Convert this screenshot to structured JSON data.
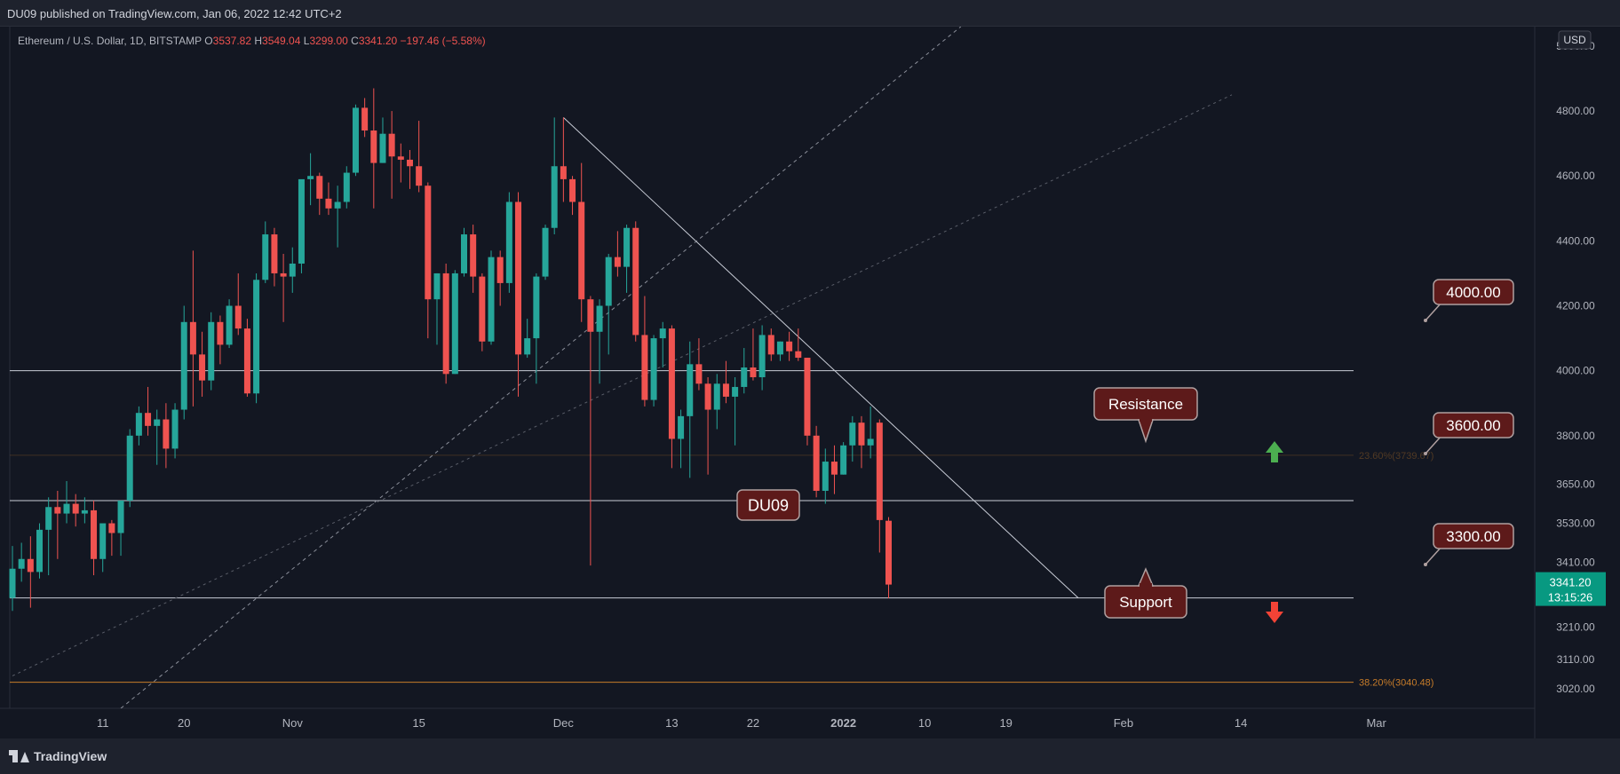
{
  "header": {
    "published": "DU09 published on TradingView.com, Jan 06, 2022 12:42 UTC+2"
  },
  "legend": {
    "symbol": "Ethereum / U.S. Dollar, 1D, BITSTAMP",
    "o_label": "O",
    "o_value": "3537.82",
    "h_label": "H",
    "h_value": "3549.04",
    "l_label": "L",
    "l_value": "3299.00",
    "c_label": "C",
    "c_value": "3341.20",
    "change": "−197.46 (−5.58%)"
  },
  "currency_label": "USD",
  "price_badge": {
    "price": "3341.20",
    "countdown": "13:15:26"
  },
  "annotations": {
    "watermark": "DU09",
    "resistance": "Resistance",
    "support": "Support",
    "level_4000": "4000.00",
    "level_3600": "3600.00",
    "level_3300": "3300.00",
    "fib_236": "23.60%(3739.67)",
    "fib_382": "38.20%(3040.48)"
  },
  "footer": {
    "brand": "TradingView"
  },
  "colors": {
    "background": "#131722",
    "up": "#26a69a",
    "down": "#ef5350",
    "text": "#b2b5be",
    "label_bg": "#5d1a1a",
    "fib": "#c77c29",
    "badge": "#089981"
  },
  "chart_data": {
    "type": "candlestick",
    "ylim": [
      2960,
      5060
    ],
    "y_ticks": [
      {
        "label": "5000.00",
        "value": 5000
      },
      {
        "label": "4800.00",
        "value": 4800
      },
      {
        "label": "4600.00",
        "value": 4600
      },
      {
        "label": "4400.00",
        "value": 4400
      },
      {
        "label": "4200.00",
        "value": 4200
      },
      {
        "label": "4000.00",
        "value": 4000
      },
      {
        "label": "3800.00",
        "value": 3800
      },
      {
        "label": "3650.00",
        "value": 3650
      },
      {
        "label": "3530.00",
        "value": 3530
      },
      {
        "label": "3410.00",
        "value": 3410
      },
      {
        "label": "3210.00",
        "value": 3210
      },
      {
        "label": "3110.00",
        "value": 3110
      },
      {
        "label": "3020.00",
        "value": 3020
      }
    ],
    "x_ticks": [
      {
        "label": "11",
        "date": "2021-10-11"
      },
      {
        "label": "20",
        "date": "2021-10-20"
      },
      {
        "label": "Nov",
        "date": "2021-11-01"
      },
      {
        "label": "15",
        "date": "2021-11-15"
      },
      {
        "label": "Dec",
        "date": "2021-12-01"
      },
      {
        "label": "13",
        "date": "2021-12-13"
      },
      {
        "label": "22",
        "date": "2021-12-22"
      },
      {
        "label": "2022",
        "date": "2022-01-01"
      },
      {
        "label": "10",
        "date": "2022-01-10"
      },
      {
        "label": "19",
        "date": "2022-01-19"
      },
      {
        "label": "Feb",
        "date": "2022-02-01"
      },
      {
        "label": "14",
        "date": "2022-02-14"
      },
      {
        "label": "Mar",
        "date": "2022-03-01"
      }
    ],
    "candles": [
      {
        "date": "2021-10-01",
        "o": 3300,
        "h": 3460,
        "l": 3260,
        "c": 3390
      },
      {
        "date": "2021-10-02",
        "o": 3390,
        "h": 3470,
        "l": 3350,
        "c": 3420
      },
      {
        "date": "2021-10-03",
        "o": 3420,
        "h": 3490,
        "l": 3270,
        "c": 3380
      },
      {
        "date": "2021-10-04",
        "o": 3380,
        "h": 3530,
        "l": 3360,
        "c": 3510
      },
      {
        "date": "2021-10-05",
        "o": 3510,
        "h": 3610,
        "l": 3370,
        "c": 3580
      },
      {
        "date": "2021-10-06",
        "o": 3580,
        "h": 3630,
        "l": 3420,
        "c": 3560
      },
      {
        "date": "2021-10-07",
        "o": 3560,
        "h": 3660,
        "l": 3530,
        "c": 3590
      },
      {
        "date": "2021-10-08",
        "o": 3590,
        "h": 3620,
        "l": 3520,
        "c": 3560
      },
      {
        "date": "2021-10-09",
        "o": 3560,
        "h": 3610,
        "l": 3530,
        "c": 3570
      },
      {
        "date": "2021-10-10",
        "o": 3570,
        "h": 3600,
        "l": 3370,
        "c": 3420
      },
      {
        "date": "2021-10-11",
        "o": 3420,
        "h": 3520,
        "l": 3380,
        "c": 3530
      },
      {
        "date": "2021-10-12",
        "o": 3530,
        "h": 3540,
        "l": 3430,
        "c": 3500
      },
      {
        "date": "2021-10-13",
        "o": 3500,
        "h": 3600,
        "l": 3430,
        "c": 3600
      },
      {
        "date": "2021-10-14",
        "o": 3600,
        "h": 3820,
        "l": 3580,
        "c": 3800
      },
      {
        "date": "2021-10-15",
        "o": 3800,
        "h": 3890,
        "l": 3770,
        "c": 3870
      },
      {
        "date": "2021-10-16",
        "o": 3870,
        "h": 3950,
        "l": 3800,
        "c": 3830
      },
      {
        "date": "2021-10-17",
        "o": 3830,
        "h": 3880,
        "l": 3710,
        "c": 3850
      },
      {
        "date": "2021-10-18",
        "o": 3850,
        "h": 3900,
        "l": 3700,
        "c": 3760
      },
      {
        "date": "2021-10-19",
        "o": 3760,
        "h": 3900,
        "l": 3730,
        "c": 3880
      },
      {
        "date": "2021-10-20",
        "o": 3880,
        "h": 4200,
        "l": 3850,
        "c": 4150
      },
      {
        "date": "2021-10-21",
        "o": 4150,
        "h": 4370,
        "l": 3890,
        "c": 4050
      },
      {
        "date": "2021-10-22",
        "o": 4050,
        "h": 4120,
        "l": 3920,
        "c": 3970
      },
      {
        "date": "2021-10-23",
        "o": 3970,
        "h": 4180,
        "l": 3940,
        "c": 4150
      },
      {
        "date": "2021-10-24",
        "o": 4150,
        "h": 4170,
        "l": 4020,
        "c": 4080
      },
      {
        "date": "2021-10-25",
        "o": 4080,
        "h": 4220,
        "l": 4070,
        "c": 4200
      },
      {
        "date": "2021-10-26",
        "o": 4200,
        "h": 4300,
        "l": 4110,
        "c": 4130
      },
      {
        "date": "2021-10-27",
        "o": 4130,
        "h": 4160,
        "l": 3920,
        "c": 3930
      },
      {
        "date": "2021-10-28",
        "o": 3930,
        "h": 4300,
        "l": 3900,
        "c": 4280
      },
      {
        "date": "2021-10-29",
        "o": 4280,
        "h": 4460,
        "l": 4270,
        "c": 4420
      },
      {
        "date": "2021-10-30",
        "o": 4420,
        "h": 4440,
        "l": 4260,
        "c": 4300
      },
      {
        "date": "2021-10-31",
        "o": 4300,
        "h": 4360,
        "l": 4150,
        "c": 4290
      },
      {
        "date": "2021-11-01",
        "o": 4290,
        "h": 4380,
        "l": 4240,
        "c": 4330
      },
      {
        "date": "2021-11-02",
        "o": 4330,
        "h": 4580,
        "l": 4300,
        "c": 4590
      },
      {
        "date": "2021-11-03",
        "o": 4590,
        "h": 4670,
        "l": 4510,
        "c": 4600
      },
      {
        "date": "2021-11-04",
        "o": 4600,
        "h": 4610,
        "l": 4480,
        "c": 4530
      },
      {
        "date": "2021-11-05",
        "o": 4530,
        "h": 4580,
        "l": 4480,
        "c": 4500
      },
      {
        "date": "2021-11-06",
        "o": 4500,
        "h": 4570,
        "l": 4380,
        "c": 4520
      },
      {
        "date": "2021-11-07",
        "o": 4520,
        "h": 4630,
        "l": 4500,
        "c": 4610
      },
      {
        "date": "2021-11-08",
        "o": 4610,
        "h": 4820,
        "l": 4600,
        "c": 4810
      },
      {
        "date": "2021-11-09",
        "o": 4810,
        "h": 4840,
        "l": 4720,
        "c": 4740
      },
      {
        "date": "2021-11-10",
        "o": 4740,
        "h": 4870,
        "l": 4500,
        "c": 4640
      },
      {
        "date": "2021-11-11",
        "o": 4640,
        "h": 4780,
        "l": 4640,
        "c": 4730
      },
      {
        "date": "2021-11-12",
        "o": 4730,
        "h": 4800,
        "l": 4530,
        "c": 4660
      },
      {
        "date": "2021-11-13",
        "o": 4660,
        "h": 4700,
        "l": 4580,
        "c": 4650
      },
      {
        "date": "2021-11-14",
        "o": 4650,
        "h": 4680,
        "l": 4560,
        "c": 4630
      },
      {
        "date": "2021-11-15",
        "o": 4630,
        "h": 4770,
        "l": 4550,
        "c": 4570
      },
      {
        "date": "2021-11-16",
        "o": 4570,
        "h": 4580,
        "l": 4100,
        "c": 4220
      },
      {
        "date": "2021-11-17",
        "o": 4220,
        "h": 4300,
        "l": 4080,
        "c": 4300
      },
      {
        "date": "2021-11-18",
        "o": 4300,
        "h": 4330,
        "l": 3960,
        "c": 3990
      },
      {
        "date": "2021-11-19",
        "o": 3990,
        "h": 4310,
        "l": 3990,
        "c": 4300
      },
      {
        "date": "2021-11-20",
        "o": 4300,
        "h": 4440,
        "l": 4290,
        "c": 4420
      },
      {
        "date": "2021-11-21",
        "o": 4420,
        "h": 4450,
        "l": 4240,
        "c": 4290
      },
      {
        "date": "2021-11-22",
        "o": 4290,
        "h": 4300,
        "l": 4060,
        "c": 4090
      },
      {
        "date": "2021-11-23",
        "o": 4090,
        "h": 4370,
        "l": 4080,
        "c": 4350
      },
      {
        "date": "2021-11-24",
        "o": 4350,
        "h": 4370,
        "l": 4200,
        "c": 4270
      },
      {
        "date": "2021-11-25",
        "o": 4270,
        "h": 4550,
        "l": 4240,
        "c": 4520
      },
      {
        "date": "2021-11-26",
        "o": 4520,
        "h": 4550,
        "l": 3920,
        "c": 4050
      },
      {
        "date": "2021-11-27",
        "o": 4050,
        "h": 4160,
        "l": 4040,
        "c": 4100
      },
      {
        "date": "2021-11-28",
        "o": 4100,
        "h": 4300,
        "l": 3960,
        "c": 4290
      },
      {
        "date": "2021-11-29",
        "o": 4290,
        "h": 4450,
        "l": 4280,
        "c": 4440
      },
      {
        "date": "2021-11-30",
        "o": 4440,
        "h": 4780,
        "l": 4420,
        "c": 4630
      },
      {
        "date": "2021-12-01",
        "o": 4630,
        "h": 4780,
        "l": 4520,
        "c": 4590
      },
      {
        "date": "2021-12-02",
        "o": 4590,
        "h": 4600,
        "l": 4480,
        "c": 4520
      },
      {
        "date": "2021-12-03",
        "o": 4520,
        "h": 4640,
        "l": 4150,
        "c": 4220
      },
      {
        "date": "2021-12-04",
        "o": 4220,
        "h": 4230,
        "l": 3400,
        "c": 4120
      },
      {
        "date": "2021-12-05",
        "o": 4120,
        "h": 4220,
        "l": 3960,
        "c": 4200
      },
      {
        "date": "2021-12-06",
        "o": 4200,
        "h": 4360,
        "l": 4050,
        "c": 4350
      },
      {
        "date": "2021-12-07",
        "o": 4350,
        "h": 4430,
        "l": 4290,
        "c": 4320
      },
      {
        "date": "2021-12-08",
        "o": 4320,
        "h": 4450,
        "l": 4240,
        "c": 4440
      },
      {
        "date": "2021-12-09",
        "o": 4440,
        "h": 4460,
        "l": 4090,
        "c": 4110
      },
      {
        "date": "2021-12-10",
        "o": 4110,
        "h": 4230,
        "l": 3890,
        "c": 3910
      },
      {
        "date": "2021-12-11",
        "o": 3910,
        "h": 4110,
        "l": 3890,
        "c": 4100
      },
      {
        "date": "2021-12-12",
        "o": 4100,
        "h": 4150,
        "l": 4010,
        "c": 4130
      },
      {
        "date": "2021-12-13",
        "o": 4130,
        "h": 4140,
        "l": 3700,
        "c": 3790
      },
      {
        "date": "2021-12-14",
        "o": 3790,
        "h": 3880,
        "l": 3700,
        "c": 3860
      },
      {
        "date": "2021-12-15",
        "o": 3860,
        "h": 4090,
        "l": 3670,
        "c": 4020
      },
      {
        "date": "2021-12-16",
        "o": 4020,
        "h": 4100,
        "l": 3940,
        "c": 3960
      },
      {
        "date": "2021-12-17",
        "o": 3960,
        "h": 3980,
        "l": 3680,
        "c": 3880
      },
      {
        "date": "2021-12-18",
        "o": 3880,
        "h": 3990,
        "l": 3820,
        "c": 3960
      },
      {
        "date": "2021-12-19",
        "o": 3960,
        "h": 4030,
        "l": 3900,
        "c": 3920
      },
      {
        "date": "2021-12-20",
        "o": 3920,
        "h": 3980,
        "l": 3770,
        "c": 3950
      },
      {
        "date": "2021-12-21",
        "o": 3950,
        "h": 4070,
        "l": 3930,
        "c": 4010
      },
      {
        "date": "2021-12-22",
        "o": 4010,
        "h": 4130,
        "l": 3970,
        "c": 3980
      },
      {
        "date": "2021-12-23",
        "o": 3980,
        "h": 4140,
        "l": 3940,
        "c": 4110
      },
      {
        "date": "2021-12-24",
        "o": 4110,
        "h": 4130,
        "l": 4030,
        "c": 4050
      },
      {
        "date": "2021-12-25",
        "o": 4050,
        "h": 4090,
        "l": 4030,
        "c": 4090
      },
      {
        "date": "2021-12-26",
        "o": 4090,
        "h": 4120,
        "l": 4030,
        "c": 4060
      },
      {
        "date": "2021-12-27",
        "o": 4060,
        "h": 4130,
        "l": 4030,
        "c": 4040
      },
      {
        "date": "2021-12-28",
        "o": 4040,
        "h": 4040,
        "l": 3770,
        "c": 3800
      },
      {
        "date": "2021-12-29",
        "o": 3800,
        "h": 3830,
        "l": 3610,
        "c": 3630
      },
      {
        "date": "2021-12-30",
        "o": 3630,
        "h": 3760,
        "l": 3590,
        "c": 3720
      },
      {
        "date": "2021-12-31",
        "o": 3720,
        "h": 3770,
        "l": 3620,
        "c": 3680
      },
      {
        "date": "2022-01-01",
        "o": 3680,
        "h": 3780,
        "l": 3680,
        "c": 3770
      },
      {
        "date": "2022-01-02",
        "o": 3770,
        "h": 3860,
        "l": 3720,
        "c": 3840
      },
      {
        "date": "2022-01-03",
        "o": 3840,
        "h": 3860,
        "l": 3700,
        "c": 3770
      },
      {
        "date": "2022-01-04",
        "o": 3770,
        "h": 3890,
        "l": 3730,
        "c": 3790
      },
      {
        "date": "2022-01-05",
        "o": 3840,
        "h": 3850,
        "l": 3440,
        "c": 3540
      },
      {
        "date": "2022-01-06",
        "o": 3537.82,
        "h": 3549.04,
        "l": 3299.0,
        "c": 3341.2
      }
    ],
    "horizontal_levels": [
      4000,
      3600,
      3300
    ],
    "fib_levels": [
      {
        "label": "23.60%(3739.67)",
        "value": 3739.67
      },
      {
        "label": "38.20%(3040.48)",
        "value": 3040.48
      }
    ],
    "trendlines": [
      {
        "from": {
          "date": "2021-12-01",
          "price": 4780
        },
        "to": {
          "date": "2022-01-27",
          "price": 3300
        }
      },
      {
        "from": {
          "date": "2021-10-13",
          "price": 2960
        },
        "to": {
          "date": "2022-01-14",
          "price": 5060
        }
      },
      {
        "from": {
          "date": "2021-10-01",
          "price": 3060
        },
        "to": {
          "date": "2022-02-13",
          "price": 4850
        }
      }
    ]
  }
}
